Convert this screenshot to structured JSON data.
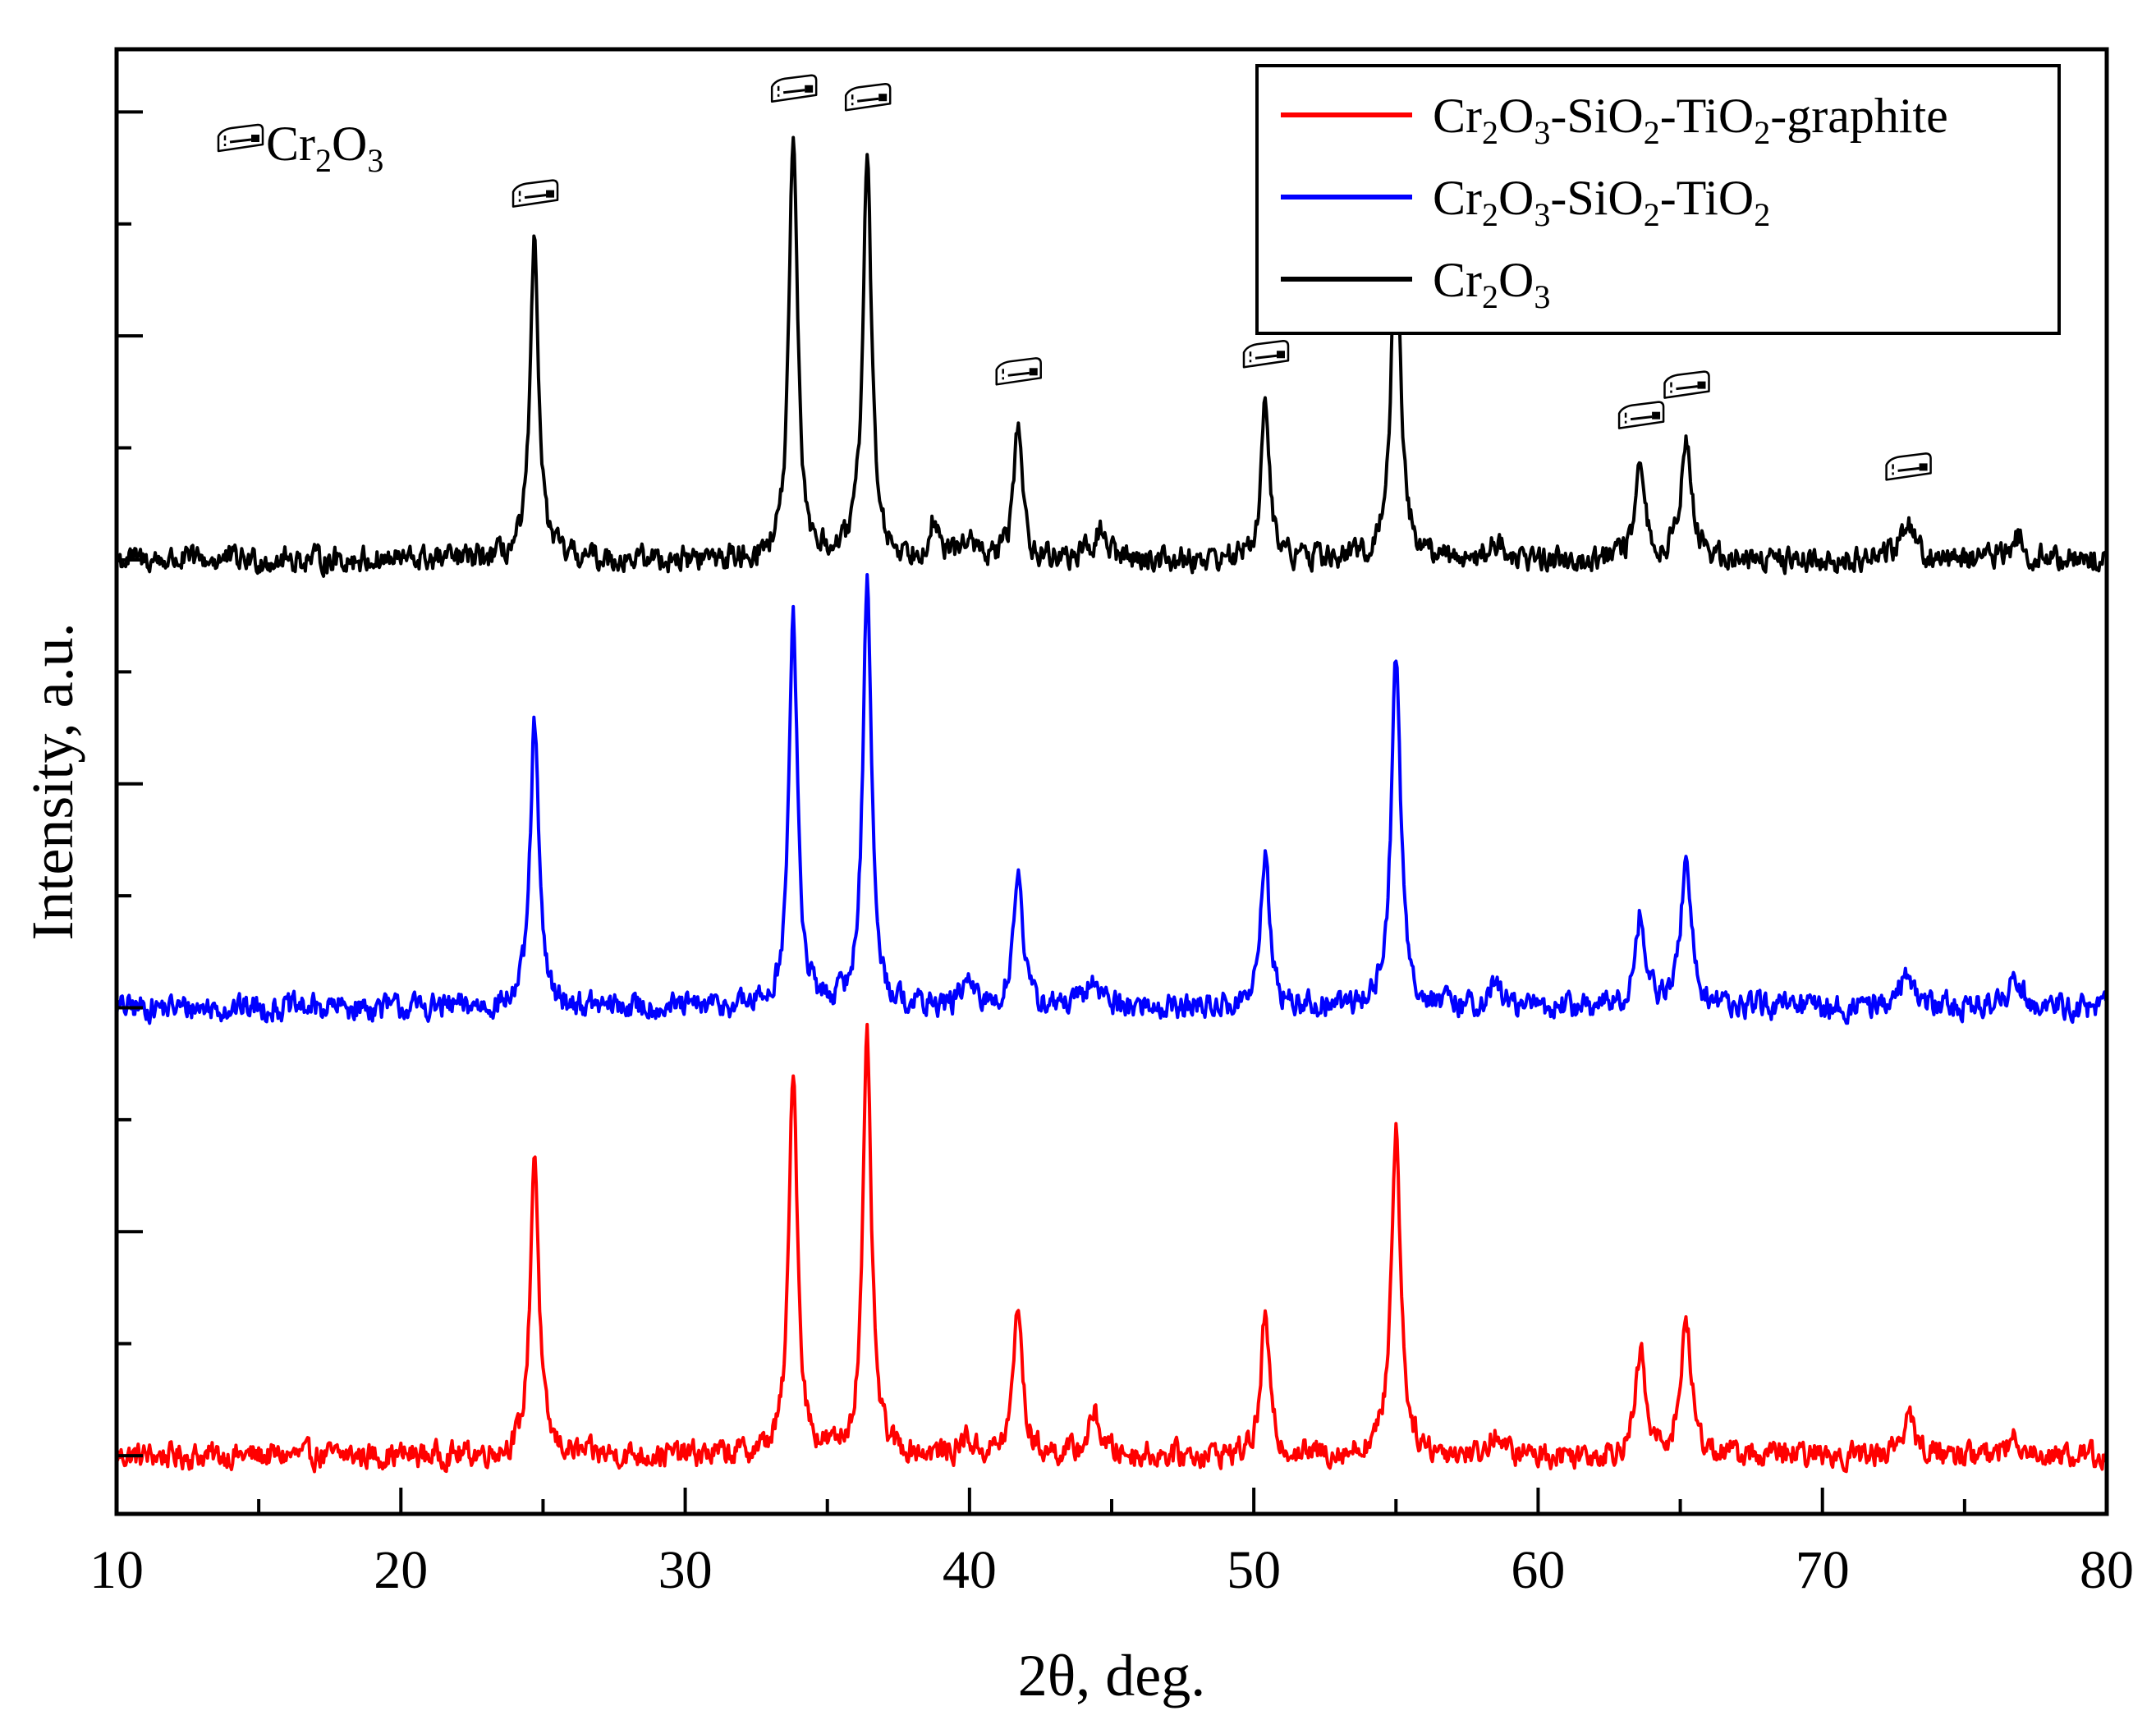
{
  "chart_data": {
    "type": "line",
    "xlabel": "2θ, deg.",
    "ylabel": "Intensity, a.u.",
    "xlim": [
      10,
      80
    ],
    "x_ticks": [
      "10",
      "20",
      "30",
      "40",
      "50",
      "60",
      "70",
      "80"
    ],
    "legend_position": "top-right",
    "marker_legend": {
      "symbol": "cr2o3-marker-icon",
      "label_base": "Cr",
      "sub1": "2",
      "mid": "O",
      "sub2": "3"
    },
    "noise_amplitude": 0.55,
    "peak_markers_x": [
      24.7,
      33.8,
      36.4,
      41.7,
      50.4,
      55.0,
      63.6,
      65.2,
      73.0
    ],
    "series": [
      {
        "name": "Cr2O3-SiO2-TiO2-graphite",
        "legend_parts": [
          "Cr",
          "2",
          "O",
          "3",
          "-SiO",
          "2",
          "-TiO",
          "2",
          "-graphite"
        ],
        "color": "#ff0000",
        "baseline": 0,
        "peaks": [
          [
            24.7,
            6.8,
            0.18
          ],
          [
            33.8,
            8.7,
            0.18
          ],
          [
            36.4,
            9.2,
            0.18
          ],
          [
            39.9,
            0.4,
            0.2
          ],
          [
            41.7,
            3.4,
            0.18
          ],
          [
            44.4,
            0.9,
            0.25
          ],
          [
            50.4,
            3.1,
            0.18
          ],
          [
            55.0,
            7.3,
            0.2
          ],
          [
            58.5,
            0.5,
            0.2
          ],
          [
            63.6,
            2.3,
            0.2
          ],
          [
            65.2,
            3.0,
            0.22
          ],
          [
            73.0,
            0.8,
            0.3
          ],
          [
            76.8,
            0.4,
            0.3
          ]
        ]
      },
      {
        "name": "Cr2O3-SiO2-TiO2",
        "legend_parts": [
          "Cr",
          "2",
          "O",
          "3",
          "-SiO",
          "2",
          "-TiO",
          "2",
          "",
          "",
          ""
        ],
        "color": "#0000ff",
        "baseline": 10,
        "peaks": [
          [
            24.7,
            6.4,
            0.18
          ],
          [
            33.8,
            8.7,
            0.18
          ],
          [
            36.4,
            9.6,
            0.18
          ],
          [
            39.9,
            0.6,
            0.2
          ],
          [
            41.7,
            3.2,
            0.18
          ],
          [
            44.4,
            0.6,
            0.3
          ],
          [
            50.4,
            3.5,
            0.18
          ],
          [
            55.0,
            7.8,
            0.2
          ],
          [
            58.5,
            0.5,
            0.25
          ],
          [
            63.6,
            2.1,
            0.2
          ],
          [
            65.2,
            3.2,
            0.22
          ],
          [
            73.0,
            0.8,
            0.3
          ],
          [
            76.8,
            0.7,
            0.3
          ]
        ]
      },
      {
        "name": "Cr2O3",
        "legend_parts": [
          "Cr",
          "2",
          "O",
          "3"
        ],
        "color": "#000000",
        "baseline": 20,
        "peaks": [
          [
            24.7,
            7.0,
            0.18
          ],
          [
            33.8,
            9.3,
            0.18
          ],
          [
            36.4,
            9.1,
            0.18
          ],
          [
            38.7,
            0.8,
            0.2
          ],
          [
            39.9,
            0.5,
            0.2
          ],
          [
            41.7,
            3.0,
            0.18
          ],
          [
            44.6,
            0.6,
            0.3
          ],
          [
            50.4,
            3.4,
            0.18
          ],
          [
            55.0,
            7.3,
            0.2
          ],
          [
            58.5,
            0.4,
            0.25
          ],
          [
            63.6,
            2.0,
            0.2
          ],
          [
            65.2,
            2.7,
            0.22
          ],
          [
            73.0,
            0.9,
            0.3
          ],
          [
            76.9,
            0.5,
            0.3
          ]
        ]
      }
    ]
  }
}
